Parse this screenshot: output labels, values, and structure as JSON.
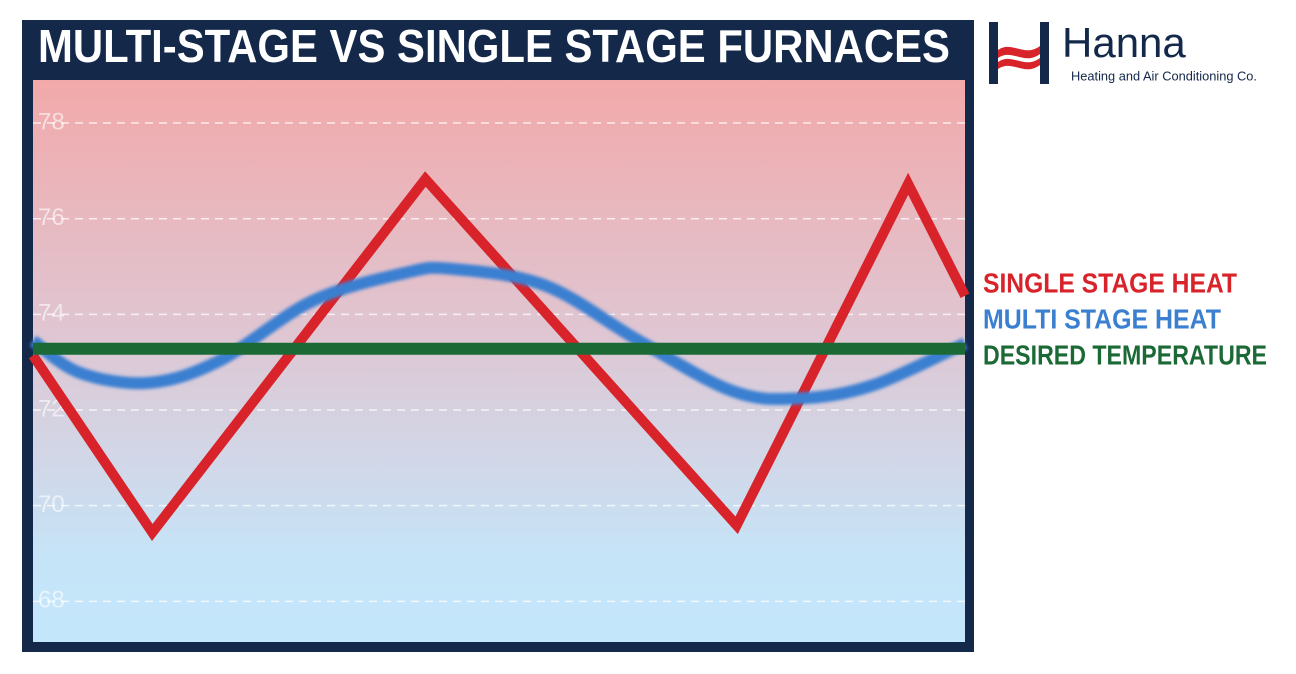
{
  "chart_data": {
    "type": "line",
    "title": "MULTI-STAGE VS SINGLE STAGE FURNACES",
    "xlim": [
      0,
      100
    ],
    "ylim": [
      67.15,
      78.9
    ],
    "yticks": [
      68,
      70,
      72,
      74,
      76,
      78
    ],
    "grid": true,
    "series": [
      {
        "name": "SINGLE STAGE HEAT",
        "color": "#d8232a",
        "smooth": false,
        "x": [
          0,
          12.8,
          42.1,
          75.5,
          93.9,
          100
        ],
        "values": [
          73.14,
          69.44,
          76.83,
          69.59,
          76.73,
          74.39
        ]
      },
      {
        "name": "MULTI STAGE HEAT",
        "color": "#3b7fd1",
        "smooth": true,
        "x": [
          0,
          5,
          12.5,
          20,
          30,
          40,
          45,
          55,
          65,
          75,
          82,
          90,
          100
        ],
        "values": [
          73.45,
          72.78,
          72.57,
          73.03,
          74.28,
          74.87,
          74.95,
          74.6,
          73.45,
          72.4,
          72.24,
          72.51,
          73.39
        ]
      },
      {
        "name": "DESIRED TEMPERATURE",
        "color": "#1b6a36",
        "smooth": false,
        "x": [
          0,
          100
        ],
        "values": [
          73.28,
          73.28
        ]
      }
    ]
  },
  "logo": {
    "name": "Hanna",
    "tagline": "Heating and Air Conditioning Co."
  }
}
